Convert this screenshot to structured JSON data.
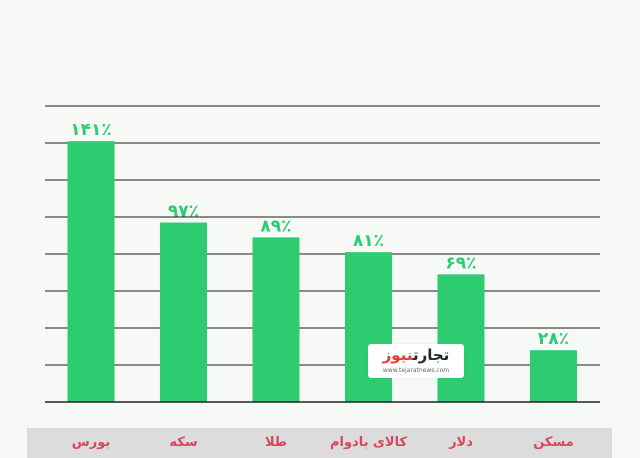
{
  "chart_data": {
    "type": "bar",
    "categories": [
      "بورس",
      "سکه",
      "طلا",
      "کالای بادوام",
      "دلار",
      "مسکن"
    ],
    "values": [
      141,
      97,
      89,
      81,
      69,
      28
    ],
    "value_labels": [
      "۱۴۱٪",
      "۹۷٪",
      "۸۹٪",
      "۸۱٪",
      "۶۹٪",
      "۲۸٪"
    ],
    "ylim": [
      0,
      160
    ],
    "grid": true,
    "bar_color": "#2ecc71",
    "value_label_color": "#2ecc71",
    "category_label_color": "#d9475b",
    "title": ""
  },
  "watermark": {
    "logo_part1": "تجارت",
    "logo_part2": "نیوز",
    "url": "www.tejaratnews.com"
  }
}
